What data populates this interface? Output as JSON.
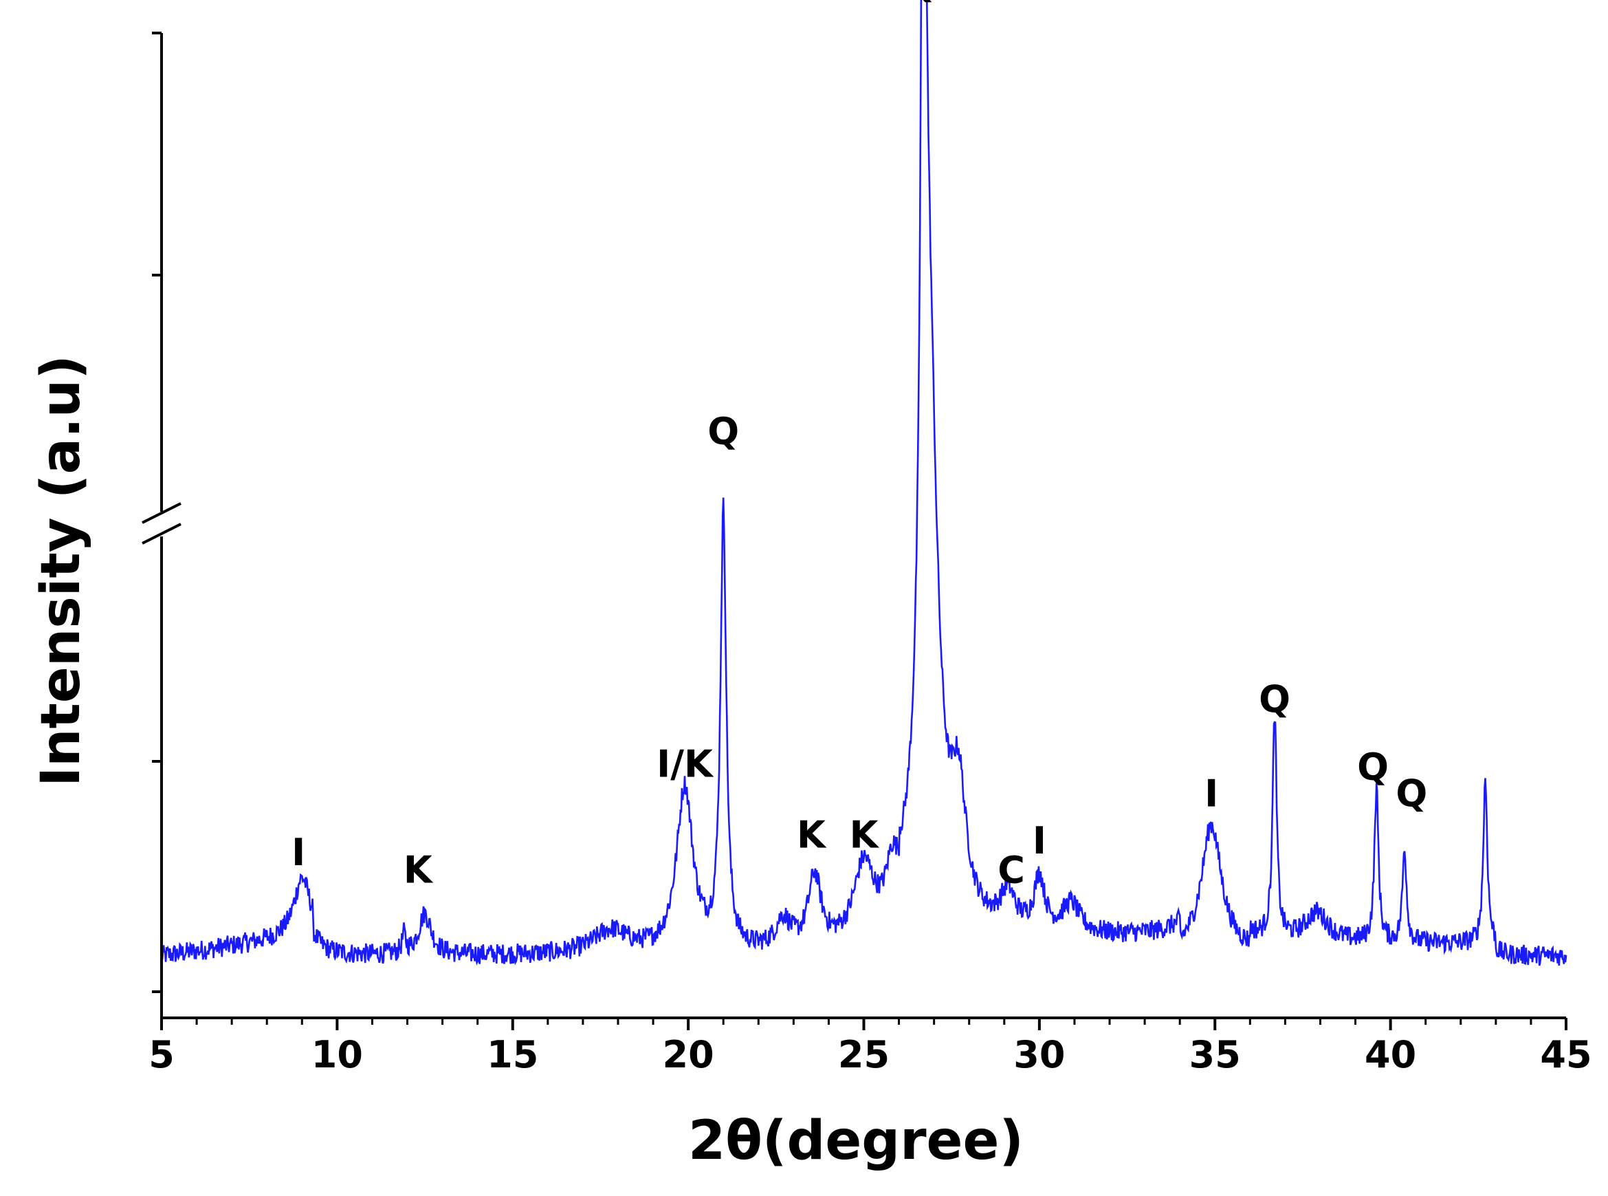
{
  "chart_data": {
    "type": "line",
    "title": "",
    "xlabel": "2θ(degree)",
    "ylabel": "Intensity (a.u)",
    "xlim": [
      5,
      45
    ],
    "x_ticks": [
      5,
      10,
      15,
      20,
      25,
      30,
      35,
      40,
      45
    ],
    "x_tick_labels": [
      "5",
      "10",
      "15",
      "20",
      "25",
      "30",
      "35",
      "40",
      "45"
    ],
    "y_tick_labels": false,
    "y_axis_break": true,
    "grid": false,
    "legend": "none",
    "series_color": "#1a1aff",
    "baseline": 0.06,
    "peaks": [
      {
        "x": 9.0,
        "height": 0.1,
        "width": 0.28
      },
      {
        "x": 12.5,
        "height": 0.07,
        "width": 0.22
      },
      {
        "x": 11.9,
        "height": 0.03,
        "width": 0.06
      },
      {
        "x": 17.8,
        "height": 0.04,
        "width": 0.6
      },
      {
        "x": 19.9,
        "height": 0.28,
        "width": 0.28
      },
      {
        "x": 21.0,
        "height": 0.74,
        "width": 0.1
      },
      {
        "x": 22.7,
        "height": 0.05,
        "width": 0.25
      },
      {
        "x": 23.6,
        "height": 0.12,
        "width": 0.22
      },
      {
        "x": 25.0,
        "height": 0.13,
        "width": 0.35
      },
      {
        "x": 25.8,
        "height": 0.08,
        "width": 0.2
      },
      {
        "x": 26.7,
        "height": 1.62,
        "width": 0.08
      },
      {
        "x": 26.85,
        "height": 0.95,
        "width": 0.3
      },
      {
        "x": 27.7,
        "height": 0.2,
        "width": 0.25
      },
      {
        "x": 29.1,
        "height": 0.06,
        "width": 0.25
      },
      {
        "x": 30.0,
        "height": 0.09,
        "width": 0.18
      },
      {
        "x": 30.9,
        "height": 0.05,
        "width": 0.3
      },
      {
        "x": 34.9,
        "height": 0.22,
        "width": 0.35
      },
      {
        "x": 36.7,
        "height": 0.38,
        "width": 0.07
      },
      {
        "x": 37.9,
        "height": 0.05,
        "width": 0.4
      },
      {
        "x": 39.6,
        "height": 0.26,
        "width": 0.07
      },
      {
        "x": 40.4,
        "height": 0.16,
        "width": 0.07
      },
      {
        "x": 42.7,
        "height": 0.28,
        "width": 0.07
      }
    ],
    "annotations": [
      {
        "text": "I",
        "x": 8.9,
        "y": 0.215
      },
      {
        "text": "K",
        "x": 12.3,
        "y": 0.185
      },
      {
        "text": "I/K",
        "x": 19.9,
        "y": 0.365
      },
      {
        "text": "Q",
        "x": 21.0,
        "y": 0.93
      },
      {
        "text": "K",
        "x": 23.5,
        "y": 0.245
      },
      {
        "text": "K",
        "x": 25.0,
        "y": 0.245
      },
      {
        "text": "Q",
        "x": 26.6,
        "y": 1.69
      },
      {
        "text": "C",
        "x": 29.2,
        "y": 0.185
      },
      {
        "text": "I",
        "x": 30.0,
        "y": 0.235
      },
      {
        "text": "I",
        "x": 34.9,
        "y": 0.315
      },
      {
        "text": "Q",
        "x": 36.7,
        "y": 0.475
      },
      {
        "text": "Q",
        "x": 39.5,
        "y": 0.36
      },
      {
        "text": "Q",
        "x": 40.6,
        "y": 0.315
      }
    ]
  }
}
